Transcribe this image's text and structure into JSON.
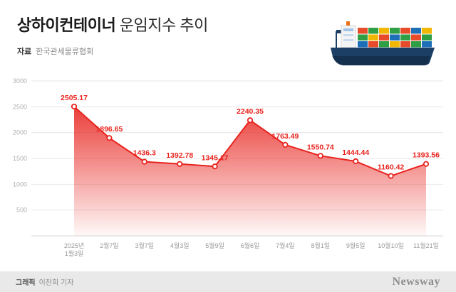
{
  "header": {
    "title_bold": "상하이컨테이너",
    "title_rest": " 운임지수 추이",
    "source_label": "자료",
    "source_value": "한국관세물류협회"
  },
  "footer": {
    "credit_bold": "그래픽",
    "credit_rest": "이찬희 기자",
    "logo": "Newsway"
  },
  "colors": {
    "line": "#e8231e",
    "area_top": "#e8231e",
    "grid": "#e7e7e7",
    "footer_bg": "#e9e9e9"
  },
  "chart_data": {
    "type": "area",
    "title": "상하이컨테이너 운임지수 추이",
    "source": "한국관세물류협회",
    "categories": [
      "2025년|1월3일",
      "2월7일",
      "3월7일",
      "4월3일",
      "5월9일",
      "6월6일",
      "7월4일",
      "8월1일",
      "9월5일",
      "10월10일",
      "11월21일"
    ],
    "values": [
      2505.17,
      1896.65,
      1436.3,
      1392.78,
      1345.17,
      2240.35,
      1763.49,
      1550.74,
      1444.44,
      1160.42,
      1393.56
    ],
    "labels": [
      "2505.17",
      "1896.65",
      "1436.3",
      "1392.78",
      "1345.17",
      "2240.35",
      "1763.49",
      "1550.74",
      "1444.44",
      "1160.42",
      "1393.56"
    ],
    "xlabel": "",
    "ylabel": "",
    "ylim": [
      0,
      3000
    ],
    "yticks": [
      500,
      1000,
      1500,
      2000,
      2500,
      3000
    ],
    "grid": true,
    "legend": false,
    "line_color": "#e8231e",
    "marker": "circle-white-fill"
  }
}
